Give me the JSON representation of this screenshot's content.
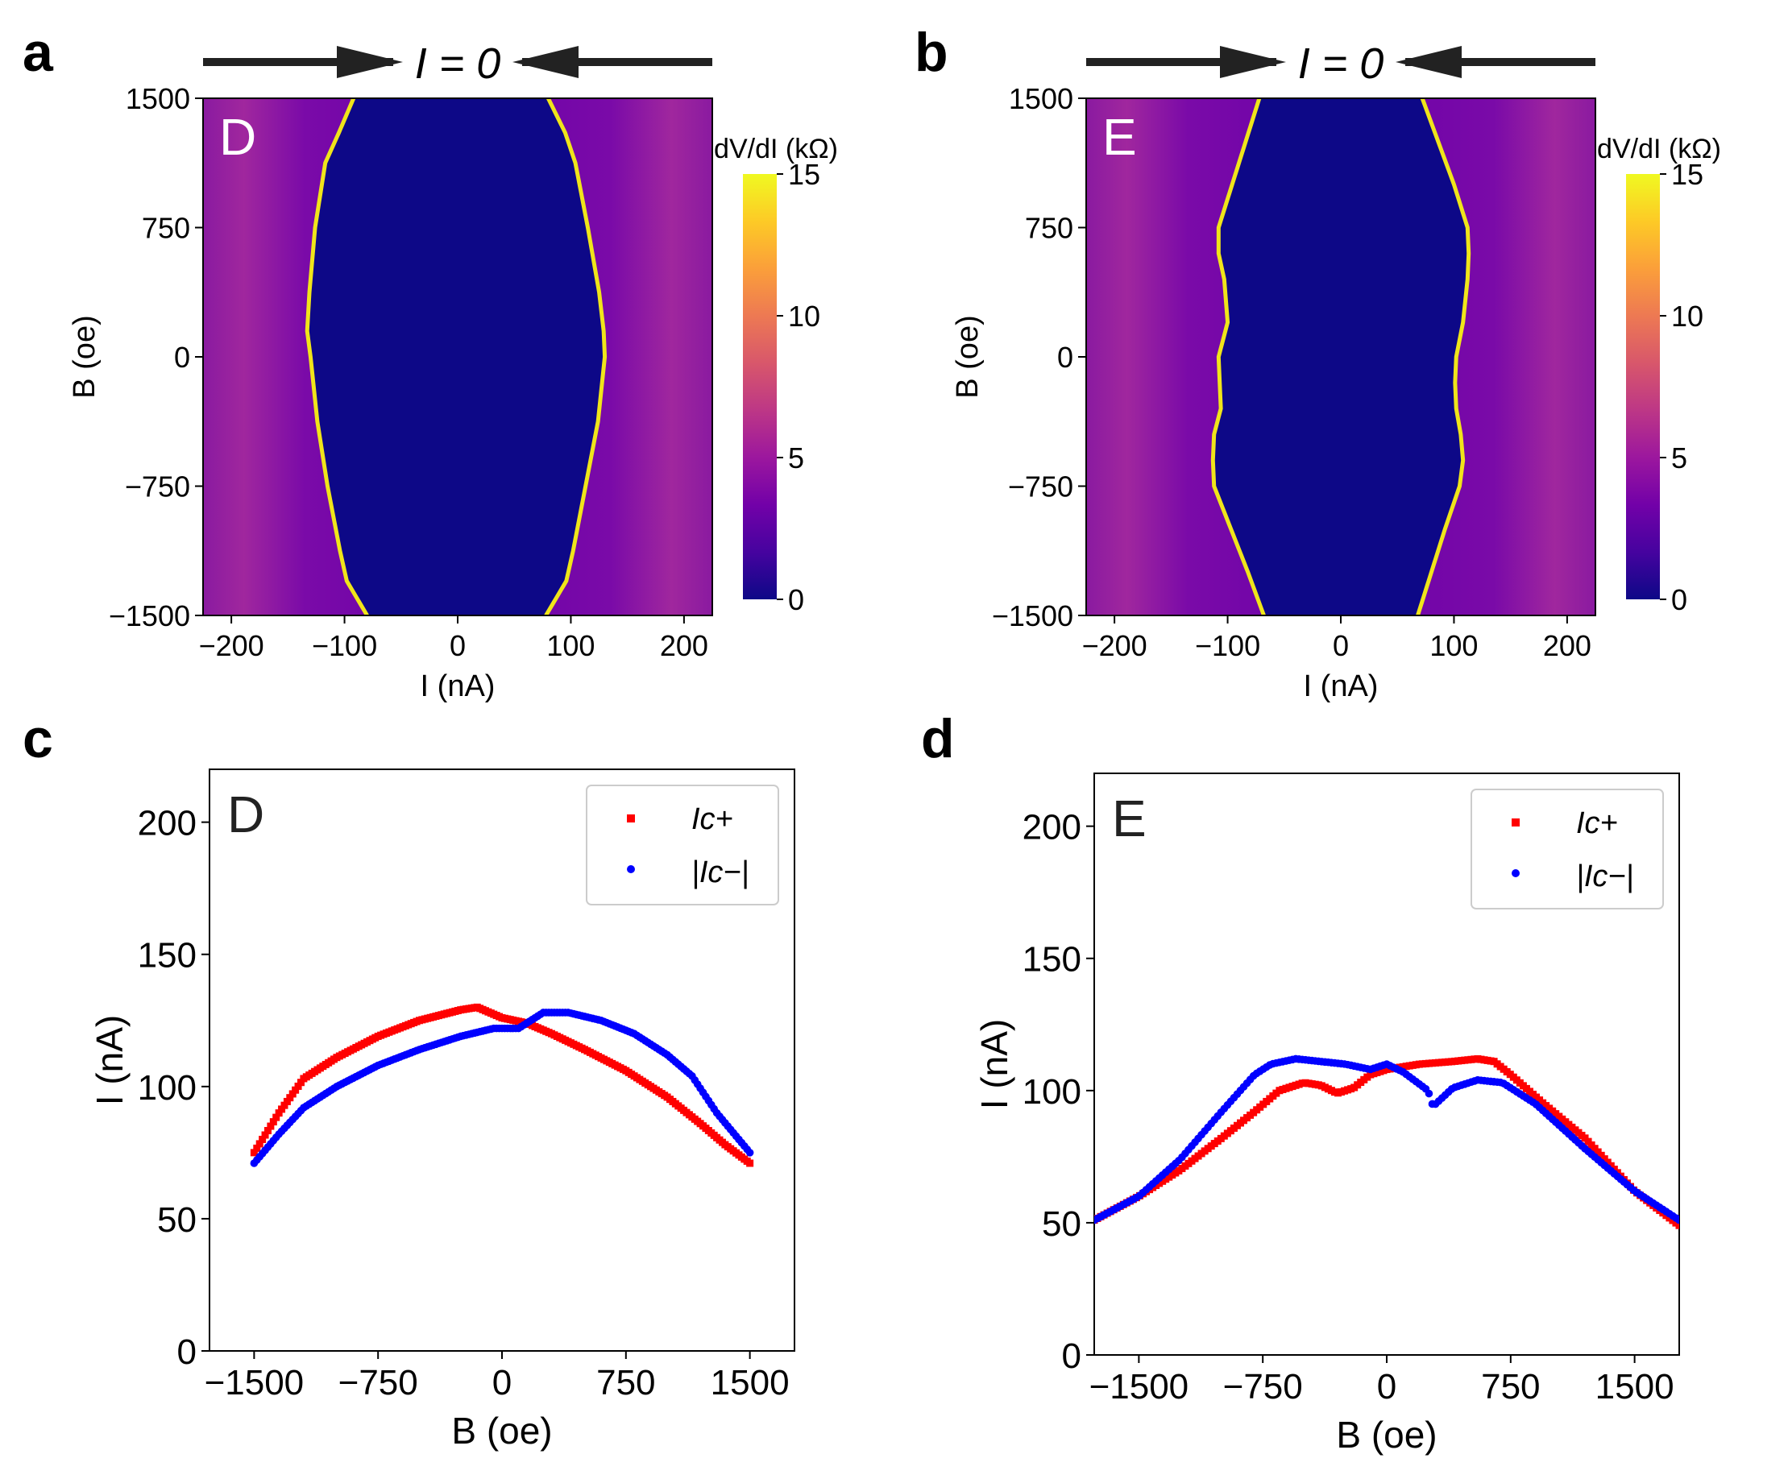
{
  "colors": {
    "ic_plus": "#ff0000",
    "ic_minus": "#0000ff",
    "axis": "#000000",
    "panel_letter_text": "#ffffff",
    "colormap": [
      "#0d0887",
      "#46039f",
      "#7201a8",
      "#9c179e",
      "#bd3786",
      "#d8576b",
      "#ed7953",
      "#fb9f3a",
      "#fdca26",
      "#f0f921"
    ]
  },
  "chart_data": [
    {
      "panel": "a",
      "type": "heatmap",
      "sample": "D",
      "sweep_label": "I = 0",
      "sweep_arrows": "outer-to-center",
      "xlabel": "I (nA)",
      "ylabel": "B (oe)",
      "xlim": [
        -225,
        225
      ],
      "ylim": [
        -1500,
        1500
      ],
      "xticks": [
        -200,
        -100,
        0,
        100,
        200
      ],
      "yticks": [
        -1500,
        -750,
        0,
        750,
        1500
      ],
      "colorbar": {
        "label": "dV/dI (kΩ)",
        "range": [
          0,
          15
        ],
        "ticks": [
          0,
          5,
          10,
          15
        ]
      },
      "edges": {
        "B": [
          -1500,
          -1300,
          -1125,
          -750,
          -375,
          0,
          150,
          375,
          750,
          1125,
          1300,
          1500
        ],
        "I_plus": [
          78,
          96,
          102,
          113,
          124,
          130,
          129,
          125,
          115,
          104,
          95,
          80
        ],
        "I_minus": [
          -80,
          -98,
          -104,
          -115,
          -124,
          -130,
          -133,
          -131,
          -126,
          -117,
          -105,
          -92
        ]
      }
    },
    {
      "panel": "b",
      "type": "heatmap",
      "sample": "E",
      "sweep_label": "I = 0",
      "sweep_arrows": "outer-to-center",
      "xlabel": "I (nA)",
      "ylabel": "B (oe)",
      "xlim": [
        -225,
        225
      ],
      "ylim": [
        -1500,
        1500
      ],
      "xticks": [
        -200,
        -100,
        0,
        100,
        200
      ],
      "yticks": [
        -1500,
        -750,
        0,
        750,
        1500
      ],
      "colorbar": {
        "label": "dV/dI (kΩ)",
        "range": [
          0,
          15
        ],
        "ticks": [
          0,
          5,
          10,
          15
        ]
      },
      "edges": {
        "B": [
          -1500,
          -1250,
          -1000,
          -750,
          -600,
          -450,
          -300,
          -150,
          0,
          200,
          450,
          600,
          750,
          1000,
          1250,
          1500
        ],
        "I_plus": [
          68,
          80,
          92,
          105,
          108,
          106,
          102,
          101,
          102,
          108,
          112,
          113,
          112,
          100,
          86,
          72
        ],
        "I_minus": [
          -68,
          -82,
          -97,
          -112,
          -113,
          -112,
          -106,
          -107,
          -108,
          -100,
          -103,
          -108,
          -108,
          -96,
          -84,
          -72
        ]
      }
    },
    {
      "panel": "c",
      "type": "scatter",
      "sample": "D",
      "xlabel": "B (oe)",
      "ylabel": "I (nA)",
      "xlim": [
        -1770,
        1770
      ],
      "ylim": [
        0,
        220
      ],
      "xticks": [
        -1500,
        -750,
        0,
        750,
        1500
      ],
      "yticks": [
        0,
        50,
        100,
        150,
        200
      ],
      "legend": "top-right",
      "series": [
        {
          "name": "Ic+",
          "marker": "square",
          "x": [
            -1500,
            -1350,
            -1200,
            -1000,
            -750,
            -500,
            -250,
            -150,
            0,
            150,
            300,
            500,
            750,
            1000,
            1200,
            1350,
            1500
          ],
          "y": [
            75,
            90,
            103,
            111,
            119,
            125,
            129,
            130,
            126,
            124,
            120,
            114,
            106,
            96,
            86,
            78,
            71
          ]
        },
        {
          "name": "|Ic−|",
          "marker": "circle",
          "x": [
            -1500,
            -1350,
            -1200,
            -1000,
            -750,
            -500,
            -250,
            -50,
            100,
            250,
            400,
            600,
            800,
            1000,
            1150,
            1300,
            1500
          ],
          "y": [
            71,
            82,
            92,
            100,
            108,
            114,
            119,
            122,
            122,
            128,
            128,
            125,
            120,
            112,
            104,
            90,
            75
          ]
        }
      ]
    },
    {
      "panel": "d",
      "type": "scatter",
      "sample": "E",
      "xlabel": "B (oe)",
      "ylabel": "I (nA)",
      "xlim": [
        -1770,
        1770
      ],
      "ylim": [
        0,
        220
      ],
      "xticks": [
        -1500,
        -750,
        0,
        750,
        1500
      ],
      "yticks": [
        0,
        50,
        100,
        150,
        200
      ],
      "legend": "top-right",
      "series": [
        {
          "name": "Ic+",
          "marker": "square",
          "x": [
            -1770,
            -1500,
            -1250,
            -1000,
            -800,
            -650,
            -500,
            -400,
            -300,
            -200,
            -100,
            0,
            200,
            400,
            550,
            650,
            750,
            950,
            1200,
            1500,
            1770
          ],
          "y": [
            51,
            60,
            70,
            82,
            92,
            100,
            103,
            102,
            99,
            101,
            106,
            108,
            110,
            111,
            112,
            111,
            106,
            95,
            82,
            62,
            49
          ]
        },
        {
          "name": "|Ic−|",
          "marker": "circle",
          "x": [
            -1770,
            -1500,
            -1250,
            -1000,
            -800,
            -700,
            -550,
            -400,
            -250,
            -100,
            0,
            100,
            250,
            280,
            400,
            550,
            700,
            900,
            1200,
            1500,
            1770
          ],
          "y": [
            51,
            60,
            74,
            92,
            106,
            110,
            112,
            111,
            110,
            108,
            110,
            107,
            100,
            94,
            101,
            104,
            103,
            95,
            78,
            62,
            51
          ]
        }
      ]
    }
  ],
  "panel_letters": {
    "a": "a",
    "b": "b",
    "c": "c",
    "d": "d"
  },
  "sample_labels": {
    "a": "D",
    "b": "E",
    "c": "D",
    "d": "E"
  },
  "arrow_labels": {
    "a": "I = 0",
    "b": "I = 0"
  },
  "x_tick_labels_top": [
    "−200",
    "−100",
    "0",
    "100",
    "200"
  ],
  "y_tick_labels_top": [
    "−1500",
    "−750",
    "0",
    "750",
    "1500"
  ],
  "x_tick_labels_bottom": [
    "−1500",
    "−750",
    "0",
    "750",
    "1500"
  ],
  "y_tick_labels_bottom": [
    "0",
    "50",
    "100",
    "150",
    "200"
  ],
  "colorbar_tick_labels": [
    "0",
    "5",
    "10",
    "15"
  ],
  "colorbar_label": "dV/dI (kΩ)",
  "axis_labels": {
    "top_x": "I (nA)",
    "top_y": "B (oe)",
    "bottom_x": "B (oe)",
    "bottom_y": "I (nA)"
  },
  "legend": {
    "ic_plus": "Ic+",
    "ic_minus": "|Ic−|"
  }
}
